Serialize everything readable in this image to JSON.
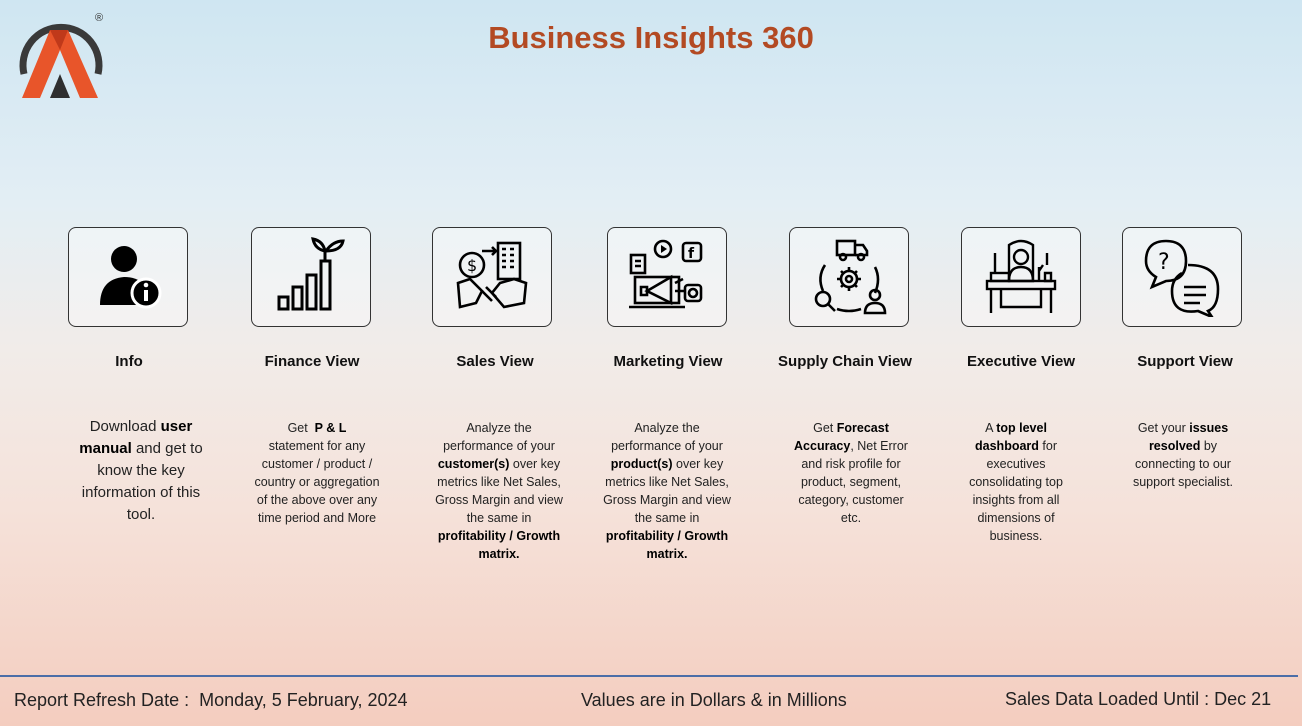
{
  "header": {
    "title": "Business Insights 360",
    "logo_mark": "®"
  },
  "views": [
    {
      "label": "Info",
      "icon": "user-info-icon",
      "desc_html": "Download <b>user manual</b> and get to know the key information of this tool."
    },
    {
      "label": "Finance View",
      "icon": "growth-bar-chart-icon",
      "desc_html": "Get &nbsp;<b>P &amp; L</b><br>statement for any customer / product / country or aggregation of the above over any time period and More"
    },
    {
      "label": "Sales View",
      "icon": "sales-handshake-icon",
      "desc_html": "Analyze the performance of your <b>customer(s)</b> over key metrics like Net Sales, Gross Margin and view the same in <b>profitability / Growth matrix.</b>"
    },
    {
      "label": "Marketing View",
      "icon": "marketing-megaphone-icon",
      "desc_html": "Analyze the performance of your <b>product(s)</b> over key metrics like Net Sales, Gross Margin and view the same in <b>profitability / Growth matrix.</b>"
    },
    {
      "label": "Supply Chain View",
      "icon": "supply-chain-icon",
      "desc_html": "Get <b>Forecast Accuracy</b>, Net Error and risk profile for product, segment, category, customer etc."
    },
    {
      "label": "Executive View",
      "icon": "executive-desk-icon",
      "desc_html": "A <b>top level dashboard</b> for executives consolidating top insights from all dimensions of business."
    },
    {
      "label": "Support View",
      "icon": "support-chat-icon",
      "desc_html": "Get your <b>issues resolved</b> by connecting to our support specialist."
    }
  ],
  "footer": {
    "refresh": "Report Refresh Date :  Monday, 5 February, 2024",
    "units": "Values are in Dollars & in Millions",
    "loaded": "Sales Data Loaded Until : Dec 21"
  },
  "colors": {
    "title": "#b34a23",
    "logo_orange": "#e8552a",
    "footer_line": "#4b6ea8"
  }
}
